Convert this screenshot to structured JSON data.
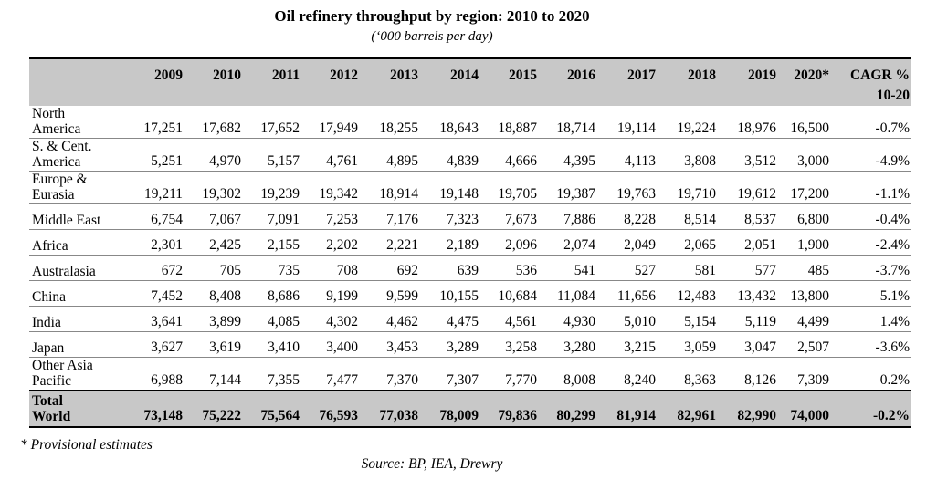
{
  "title": "Oil refinery throughput by region: 2010 to 2020",
  "subtitle": "(‘000 barrels per day)",
  "columns": [
    "2009",
    "2010",
    "2011",
    "2012",
    "2013",
    "2014",
    "2015",
    "2016",
    "2017",
    "2018",
    "2019",
    "2020*",
    "CAGR %"
  ],
  "cagr_sub": "10-20",
  "rows": [
    {
      "name": [
        "North",
        "America"
      ],
      "values": [
        "17,251",
        "17,682",
        "17,652",
        "17,949",
        "18,255",
        "18,643",
        "18,887",
        "18,714",
        "19,114",
        "19,224",
        "18,976",
        "16,500",
        "-0.7%"
      ]
    },
    {
      "name": [
        "S. & Cent.",
        "America"
      ],
      "values": [
        "5,251",
        "4,970",
        "5,157",
        "4,761",
        "4,895",
        "4,839",
        "4,666",
        "4,395",
        "4,113",
        "3,808",
        "3,512",
        "3,000",
        "-4.9%"
      ]
    },
    {
      "name": [
        "Europe &",
        "Eurasia"
      ],
      "values": [
        "19,211",
        "19,302",
        "19,239",
        "19,342",
        "18,914",
        "19,148",
        "19,705",
        "19,387",
        "19,763",
        "19,710",
        "19,612",
        "17,200",
        "-1.1%"
      ]
    },
    {
      "name": [
        "Middle East"
      ],
      "values": [
        "6,754",
        "7,067",
        "7,091",
        "7,253",
        "7,176",
        "7,323",
        "7,673",
        "7,886",
        "8,228",
        "8,514",
        "8,537",
        "6,800",
        "-0.4%"
      ]
    },
    {
      "name": [
        "Africa"
      ],
      "values": [
        "2,301",
        "2,425",
        "2,155",
        "2,202",
        "2,221",
        "2,189",
        "2,096",
        "2,074",
        "2,049",
        "2,065",
        "2,051",
        "1,900",
        "-2.4%"
      ]
    },
    {
      "name": [
        "Australasia"
      ],
      "values": [
        "672",
        "705",
        "735",
        "708",
        "692",
        "639",
        "536",
        "541",
        "527",
        "581",
        "577",
        "485",
        "-3.7%"
      ]
    },
    {
      "name": [
        "China"
      ],
      "values": [
        "7,452",
        "8,408",
        "8,686",
        "9,199",
        "9,599",
        "10,155",
        "10,684",
        "11,084",
        "11,656",
        "12,483",
        "13,432",
        "13,800",
        "5.1%"
      ]
    },
    {
      "name": [
        "India"
      ],
      "values": [
        "3,641",
        "3,899",
        "4,085",
        "4,302",
        "4,462",
        "4,475",
        "4,561",
        "4,930",
        "5,010",
        "5,154",
        "5,119",
        "4,499",
        "1.4%"
      ]
    },
    {
      "name": [
        "Japan"
      ],
      "values": [
        "3,627",
        "3,619",
        "3,410",
        "3,400",
        "3,453",
        "3,289",
        "3,258",
        "3,280",
        "3,215",
        "3,059",
        "3,047",
        "2,507",
        "-3.6%"
      ]
    },
    {
      "name": [
        "Other Asia",
        "Pacific"
      ],
      "values": [
        "6,988",
        "7,144",
        "7,355",
        "7,477",
        "7,370",
        "7,307",
        "7,770",
        "8,008",
        "8,240",
        "8,363",
        "8,126",
        "7,309",
        "0.2%"
      ]
    }
  ],
  "total": {
    "name": [
      "Total",
      "World"
    ],
    "values": [
      "73,148",
      "75,222",
      "75,564",
      "76,593",
      "77,038",
      "78,009",
      "79,836",
      "80,299",
      "81,914",
      "82,961",
      "82,990",
      "74,000",
      "-0.2%"
    ]
  },
  "footnote": "* Provisional estimates",
  "source": "Source: BP, IEA, Drewry"
}
